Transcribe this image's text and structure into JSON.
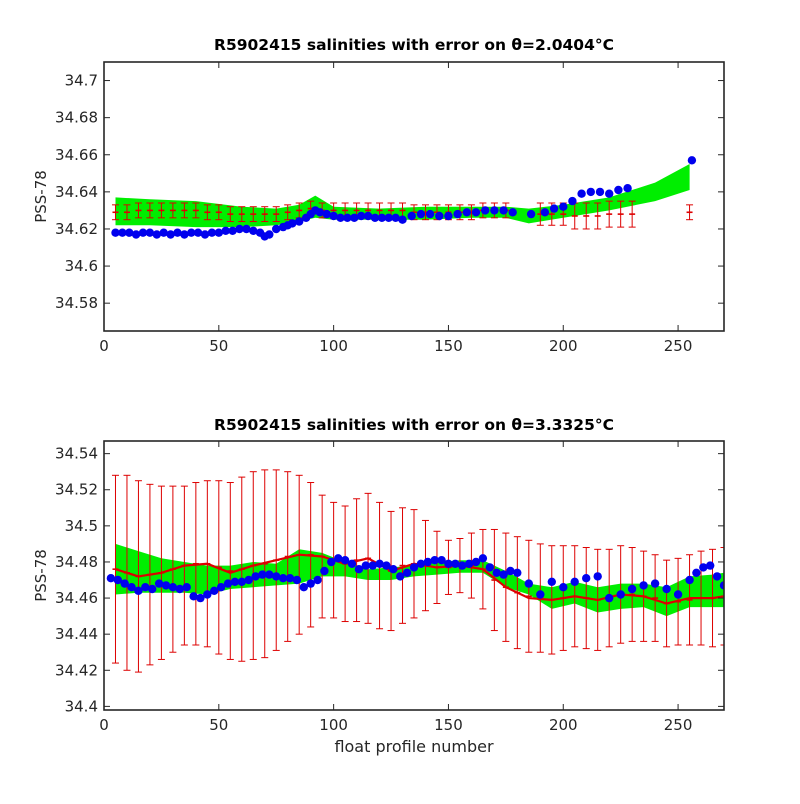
{
  "figure": {
    "xlabel": "float profile number"
  },
  "chart_data": [
    {
      "type": "scatter",
      "title": "R5902415 salinities with error on θ=2.0404°C",
      "xlabel": "",
      "ylabel": "PSS-78",
      "xlim": [
        0,
        270
      ],
      "ylim": [
        34.565,
        34.71
      ],
      "xticks": [
        0,
        50,
        100,
        150,
        200,
        250
      ],
      "yticks": [
        34.58,
        34.6,
        34.62,
        34.64,
        34.66,
        34.68,
        34.7
      ],
      "ytick_labels": [
        "34.58",
        "34.6",
        "34.62",
        "34.64",
        "34.66",
        "34.68",
        "34.7"
      ],
      "grid": false,
      "colors": {
        "band": "#00ee00",
        "error": "#dd0000",
        "points": "#0000ee"
      },
      "band": {
        "x": [
          5,
          20,
          40,
          60,
          75,
          85,
          92,
          100,
          120,
          140,
          160,
          175,
          185,
          200,
          220,
          240,
          255
        ],
        "lower": [
          34.622,
          34.622,
          34.621,
          34.621,
          34.622,
          34.624,
          34.626,
          34.625,
          34.625,
          34.625,
          34.626,
          34.626,
          34.623,
          34.626,
          34.63,
          34.635,
          34.641
        ],
        "upper": [
          34.637,
          34.636,
          34.635,
          34.632,
          34.631,
          34.633,
          34.638,
          34.632,
          34.631,
          34.632,
          34.632,
          34.632,
          34.631,
          34.633,
          34.637,
          34.645,
          34.655
        ]
      },
      "errorbars": {
        "x": [
          5,
          10,
          15,
          20,
          25,
          30,
          35,
          40,
          45,
          50,
          55,
          60,
          65,
          70,
          75,
          80,
          85,
          90,
          95,
          100,
          105,
          110,
          115,
          120,
          125,
          130,
          135,
          140,
          145,
          150,
          155,
          160,
          165,
          170,
          175,
          190,
          195,
          200,
          205,
          210,
          215,
          220,
          225,
          230,
          255
        ],
        "y": [
          34.629,
          34.629,
          34.63,
          34.63,
          34.63,
          34.63,
          34.63,
          34.63,
          34.629,
          34.629,
          34.628,
          34.628,
          34.628,
          34.628,
          34.628,
          34.629,
          34.63,
          34.631,
          34.63,
          34.63,
          34.63,
          34.63,
          34.63,
          34.63,
          34.63,
          34.63,
          34.629,
          34.629,
          34.629,
          34.629,
          34.629,
          34.629,
          34.63,
          34.63,
          34.63,
          34.628,
          34.628,
          34.628,
          34.627,
          34.627,
          34.627,
          34.628,
          34.628,
          34.628,
          34.629
        ],
        "err": [
          0.004,
          0.004,
          0.004,
          0.004,
          0.004,
          0.004,
          0.004,
          0.004,
          0.004,
          0.004,
          0.004,
          0.004,
          0.004,
          0.004,
          0.004,
          0.004,
          0.004,
          0.004,
          0.004,
          0.004,
          0.004,
          0.004,
          0.004,
          0.004,
          0.004,
          0.004,
          0.004,
          0.004,
          0.004,
          0.004,
          0.004,
          0.004,
          0.004,
          0.004,
          0.004,
          0.006,
          0.006,
          0.006,
          0.007,
          0.007,
          0.007,
          0.007,
          0.007,
          0.007,
          0.004
        ]
      },
      "points": {
        "x": [
          5,
          8,
          11,
          14,
          17,
          20,
          23,
          26,
          29,
          32,
          35,
          38,
          41,
          44,
          47,
          50,
          53,
          56,
          59,
          62,
          65,
          68,
          70,
          72,
          75,
          78,
          80,
          82,
          85,
          88,
          90,
          92,
          94,
          97,
          100,
          103,
          106,
          109,
          112,
          115,
          118,
          121,
          124,
          127,
          130,
          134,
          138,
          142,
          146,
          150,
          154,
          158,
          162,
          166,
          170,
          174,
          178,
          186,
          192,
          196,
          200,
          204,
          208,
          212,
          216,
          220,
          224,
          228,
          256
        ],
        "y": [
          34.618,
          34.618,
          34.618,
          34.617,
          34.618,
          34.618,
          34.617,
          34.618,
          34.617,
          34.618,
          34.617,
          34.618,
          34.618,
          34.617,
          34.618,
          34.618,
          34.619,
          34.619,
          34.62,
          34.62,
          34.619,
          34.618,
          34.616,
          34.617,
          34.62,
          34.621,
          34.622,
          34.623,
          34.624,
          34.626,
          34.628,
          34.63,
          34.629,
          34.628,
          34.627,
          34.626,
          34.626,
          34.626,
          34.627,
          34.627,
          34.626,
          34.626,
          34.626,
          34.626,
          34.625,
          34.627,
          34.628,
          34.628,
          34.627,
          34.627,
          34.628,
          34.629,
          34.629,
          34.63,
          34.63,
          34.63,
          34.629,
          34.628,
          34.629,
          34.631,
          34.632,
          34.635,
          34.639,
          34.64,
          34.64,
          34.639,
          34.641,
          34.642,
          34.657
        ]
      }
    },
    {
      "type": "scatter",
      "title": "R5902415 salinities with error on θ=3.3325°C",
      "xlabel": "float profile number",
      "ylabel": "PSS-78",
      "xlim": [
        0,
        270
      ],
      "ylim": [
        34.398,
        34.547
      ],
      "xticks": [
        0,
        50,
        100,
        150,
        200,
        250
      ],
      "yticks": [
        34.4,
        34.42,
        34.44,
        34.46,
        34.48,
        34.5,
        34.52,
        34.54
      ],
      "ytick_labels": [
        "34.4",
        "34.42",
        "34.44",
        "34.46",
        "34.48",
        "34.5",
        "34.52",
        "34.54"
      ],
      "grid": false,
      "colors": {
        "band": "#00ee00",
        "error": "#dd0000",
        "points": "#0000ee"
      },
      "band": {
        "x": [
          5,
          15,
          25,
          35,
          45,
          55,
          65,
          75,
          85,
          95,
          105,
          115,
          125,
          135,
          145,
          155,
          165,
          175,
          185,
          195,
          205,
          215,
          225,
          235,
          245,
          255,
          265,
          270
        ],
        "lower": [
          34.462,
          34.463,
          34.463,
          34.463,
          34.462,
          34.465,
          34.466,
          34.467,
          34.468,
          34.472,
          34.472,
          34.47,
          34.47,
          34.472,
          34.473,
          34.474,
          34.474,
          34.466,
          34.462,
          34.454,
          34.457,
          34.452,
          34.454,
          34.455,
          34.45,
          34.455,
          34.455,
          34.455
        ],
        "upper": [
          34.49,
          34.486,
          34.482,
          34.48,
          34.478,
          34.478,
          34.48,
          34.479,
          34.487,
          34.485,
          34.48,
          34.476,
          34.477,
          34.478,
          34.48,
          34.481,
          34.481,
          34.475,
          34.468,
          34.466,
          34.469,
          34.466,
          34.468,
          34.468,
          34.466,
          34.472,
          34.473,
          34.474
        ]
      },
      "redline": {
        "x": [
          5,
          15,
          25,
          35,
          45,
          55,
          65,
          75,
          85,
          95,
          105,
          115,
          125,
          135,
          145,
          155,
          165,
          175,
          185,
          195,
          205,
          215,
          225,
          235,
          245,
          255,
          265,
          270
        ],
        "y": [
          34.476,
          34.472,
          34.474,
          34.478,
          34.479,
          34.474,
          34.478,
          34.481,
          34.484,
          34.483,
          34.479,
          34.482,
          34.475,
          34.479,
          34.477,
          34.478,
          34.476,
          34.466,
          34.46,
          34.459,
          34.461,
          34.459,
          34.462,
          34.461,
          34.457,
          34.46,
          34.46,
          34.461
        ]
      },
      "errorbars": {
        "x": [
          5,
          10,
          15,
          20,
          25,
          30,
          35,
          40,
          45,
          50,
          55,
          60,
          65,
          70,
          75,
          80,
          85,
          90,
          95,
          100,
          105,
          110,
          115,
          120,
          125,
          130,
          135,
          140,
          145,
          150,
          155,
          160,
          165,
          170,
          175,
          180,
          185,
          190,
          195,
          200,
          205,
          210,
          215,
          220,
          225,
          230,
          235,
          240,
          245,
          250,
          255,
          260,
          265,
          270
        ],
        "y": [
          34.476,
          34.474,
          34.472,
          34.473,
          34.474,
          34.476,
          34.478,
          34.479,
          34.479,
          34.477,
          34.475,
          34.476,
          34.478,
          34.479,
          34.481,
          34.483,
          34.484,
          34.484,
          34.483,
          34.481,
          34.479,
          34.481,
          34.482,
          34.478,
          34.475,
          34.478,
          34.479,
          34.478,
          34.477,
          34.477,
          34.478,
          34.478,
          34.476,
          34.47,
          34.466,
          34.463,
          34.461,
          34.46,
          34.459,
          34.46,
          34.461,
          34.46,
          34.459,
          34.46,
          34.462,
          34.462,
          34.461,
          34.46,
          34.457,
          34.458,
          34.459,
          34.46,
          34.46,
          34.461
        ],
        "err": [
          0.052,
          0.054,
          0.053,
          0.05,
          0.048,
          0.046,
          0.044,
          0.045,
          0.046,
          0.048,
          0.049,
          0.051,
          0.052,
          0.052,
          0.05,
          0.047,
          0.044,
          0.04,
          0.034,
          0.032,
          0.032,
          0.034,
          0.036,
          0.035,
          0.033,
          0.032,
          0.03,
          0.025,
          0.02,
          0.015,
          0.015,
          0.018,
          0.022,
          0.028,
          0.03,
          0.031,
          0.031,
          0.03,
          0.03,
          0.029,
          0.028,
          0.028,
          0.028,
          0.027,
          0.027,
          0.026,
          0.025,
          0.024,
          0.024,
          0.024,
          0.025,
          0.026,
          0.027,
          0.027
        ]
      },
      "points": {
        "x": [
          3,
          6,
          9,
          12,
          15,
          18,
          21,
          24,
          27,
          30,
          33,
          36,
          39,
          42,
          45,
          48,
          51,
          54,
          57,
          60,
          63,
          66,
          69,
          72,
          75,
          78,
          81,
          84,
          87,
          90,
          93,
          96,
          99,
          102,
          105,
          108,
          111,
          114,
          117,
          120,
          123,
          126,
          129,
          132,
          135,
          138,
          141,
          144,
          147,
          150,
          153,
          156,
          159,
          162,
          165,
          168,
          171,
          174,
          177,
          180,
          185,
          190,
          195,
          200,
          205,
          210,
          215,
          220,
          225,
          230,
          235,
          240,
          245,
          250,
          255,
          258,
          261,
          264,
          267,
          270
        ],
        "y": [
          34.471,
          34.47,
          34.468,
          34.466,
          34.464,
          34.466,
          34.465,
          34.468,
          34.467,
          34.466,
          34.465,
          34.466,
          34.461,
          34.46,
          34.462,
          34.464,
          34.466,
          34.468,
          34.469,
          34.469,
          34.47,
          34.472,
          34.473,
          34.473,
          34.472,
          34.471,
          34.471,
          34.47,
          34.466,
          34.468,
          34.47,
          34.475,
          34.48,
          34.482,
          34.481,
          34.479,
          34.476,
          34.478,
          34.478,
          34.479,
          34.478,
          34.476,
          34.472,
          34.474,
          34.477,
          34.479,
          34.48,
          34.481,
          34.481,
          34.479,
          34.479,
          34.478,
          34.479,
          34.48,
          34.482,
          34.477,
          34.474,
          34.473,
          34.475,
          34.474,
          34.468,
          34.462,
          34.469,
          34.466,
          34.469,
          34.471,
          34.472,
          34.46,
          34.462,
          34.465,
          34.467,
          34.468,
          34.465,
          34.462,
          34.47,
          34.474,
          34.477,
          34.478,
          34.472,
          34.467
        ]
      }
    }
  ]
}
